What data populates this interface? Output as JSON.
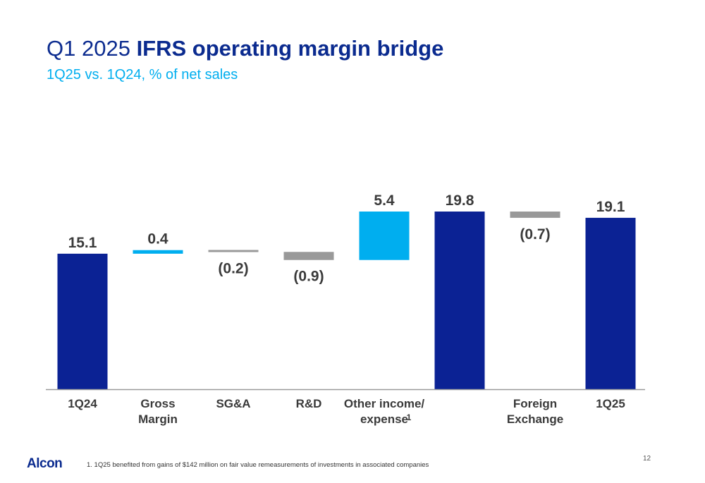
{
  "title": {
    "prefix": "Q1 2025",
    "bold": "IFRS operating margin bridge"
  },
  "subtitle": "1Q25 vs. 1Q24, % of net sales",
  "chart_data": {
    "type": "bar",
    "subtype": "waterfall",
    "categories": [
      "1Q24",
      "Gross Margin",
      "SG&A",
      "R&D",
      "Other income/ expense",
      "",
      "Foreign Exchange",
      "1Q25"
    ],
    "category_lines": [
      [
        "1Q24"
      ],
      [
        "Gross",
        "Margin"
      ],
      [
        "SG&A"
      ],
      [
        "R&D"
      ],
      [
        "Other income/",
        "expense"
      ],
      [],
      [
        "Foreign",
        "Exchange"
      ],
      [
        "1Q25"
      ]
    ],
    "category_footnote_marker": {
      "index": 4,
      "text": "1"
    },
    "values": [
      15.1,
      0.4,
      -0.2,
      -0.9,
      5.4,
      19.8,
      -0.7,
      19.1
    ],
    "kinds": [
      "total",
      "delta",
      "delta",
      "delta",
      "delta",
      "total",
      "delta",
      "total"
    ],
    "value_labels": [
      "15.1",
      "0.4",
      "(0.2)",
      "(0.9)",
      "5.4",
      "19.8",
      "(0.7)",
      "19.1"
    ],
    "ylim": [
      0,
      21
    ],
    "grid": false,
    "legend": "none",
    "colors": {
      "total": "#0b2294",
      "increase": "#00aeef",
      "decrease": "#999999",
      "axis": "#999999",
      "label": "#3a3a3a"
    }
  },
  "footnote": "1. 1Q25 benefited from gains of $142 million on fair value remeasurements of investments in associated companies",
  "logo": "Alcon",
  "page_number": "12"
}
